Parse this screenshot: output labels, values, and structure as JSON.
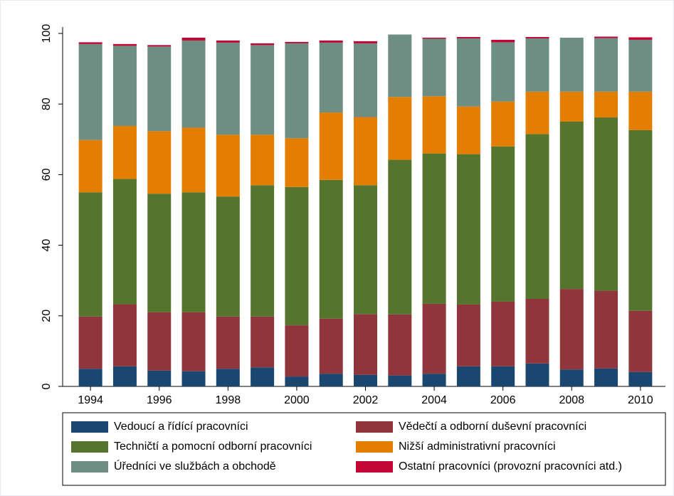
{
  "chart_data": {
    "type": "stacked_bar",
    "categories": [
      "1994",
      null,
      "1996",
      null,
      "1998",
      null,
      "2000",
      null,
      "2002",
      null,
      "2004",
      null,
      "2006",
      null,
      "2008",
      null,
      "2010"
    ],
    "series": [
      {
        "name": "Vedoucí a řídící pracovníci",
        "color": "#1a476f",
        "values": [
          5,
          5.7,
          4.5,
          4.3,
          5,
          5.4,
          2.8,
          3.6,
          3.3,
          3.1,
          3.6,
          5.7,
          5.7,
          6.5,
          4.8,
          5.1,
          4.1
        ]
      },
      {
        "name": "Vědečtí a odborní duševní pracovníci",
        "color": "#90353b",
        "values": [
          14.8,
          17.6,
          16.5,
          16.7,
          14.8,
          14.4,
          14.5,
          15.6,
          17.2,
          17.3,
          19.8,
          17.5,
          18.3,
          18.3,
          22.8,
          22,
          17.3
        ]
      },
      {
        "name": "Techničtí a pomocní odborní pracovníci",
        "color": "#55752f",
        "values": [
          35.2,
          35.5,
          33.6,
          34,
          34,
          37.2,
          39.2,
          39.3,
          36.5,
          43.8,
          42.6,
          42.6,
          44,
          46.7,
          47.4,
          49.1,
          51.2
        ]
      },
      {
        "name": "Nižší administrativní pracovníci",
        "color": "#e37e00",
        "values": [
          14.8,
          15,
          17.7,
          18.3,
          17.5,
          14.3,
          13.8,
          19.1,
          19.3,
          17.8,
          16.2,
          13.5,
          12.7,
          12,
          8.5,
          7.3,
          10.9
        ]
      },
      {
        "name": "Úředníci ve službách a obchodě",
        "color": "#6e8e84",
        "values": [
          27.2,
          22.7,
          24,
          24.7,
          26.1,
          25.4,
          26.9,
          19.8,
          20.9,
          17.7,
          16.3,
          19.3,
          16.8,
          15.1,
          15.3,
          15.2,
          14.7
        ]
      },
      {
        "name": "Ostatní pracovníci (provozní pracovníci atd.)",
        "color": "#c10534",
        "values": [
          0.5,
          0.5,
          0.4,
          0.8,
          0.6,
          0.5,
          0.4,
          0.6,
          0.6,
          0,
          0.3,
          0.4,
          0.7,
          0.4,
          0,
          0.4,
          0.7
        ]
      }
    ],
    "ylim": [
      0,
      100
    ],
    "yticks": [
      0,
      20,
      40,
      60,
      80,
      100
    ],
    "legend": "bottom"
  }
}
